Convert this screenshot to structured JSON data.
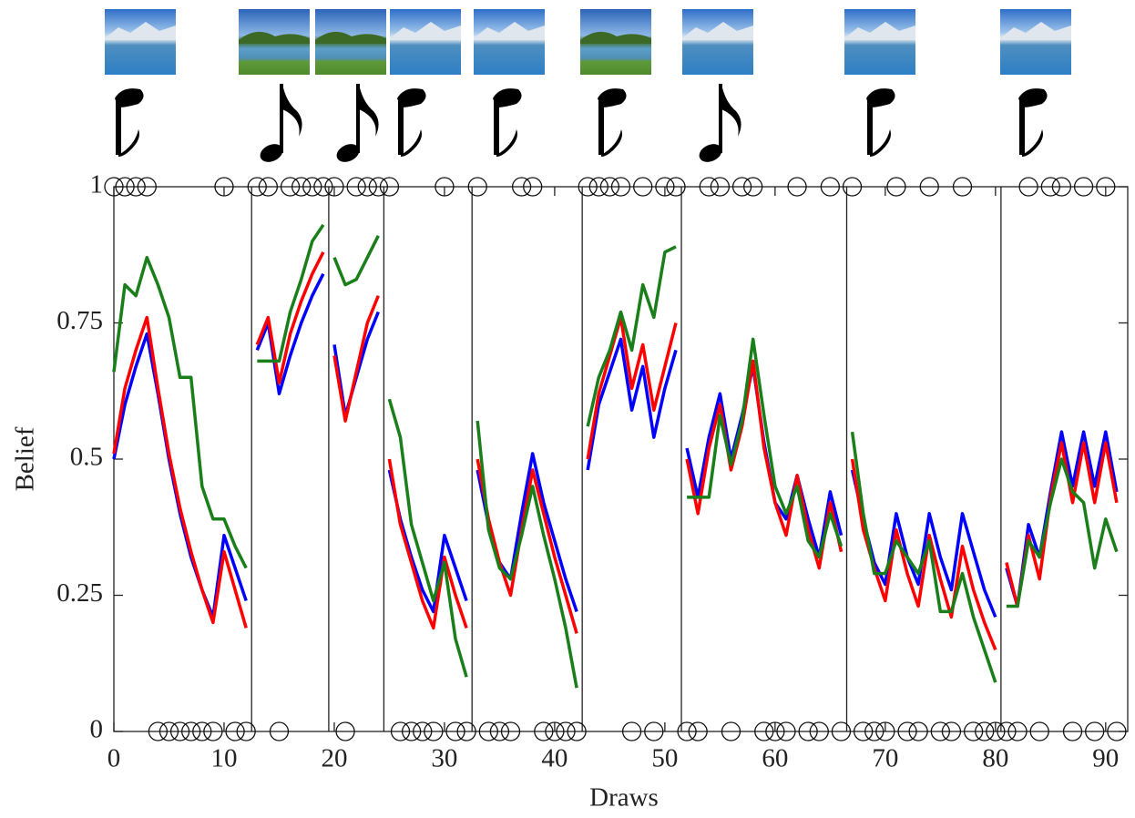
{
  "chart_data": {
    "type": "line",
    "x_label": "Draws",
    "y_label": "Belief",
    "x": [
      0,
      1,
      2,
      3,
      4,
      5,
      6,
      7,
      8,
      9,
      10,
      11,
      12,
      13,
      14,
      15,
      16,
      17,
      18,
      19,
      20,
      21,
      22,
      23,
      24,
      25,
      26,
      27,
      28,
      29,
      30,
      31,
      32,
      33,
      34,
      35,
      36,
      37,
      38,
      39,
      40,
      41,
      42,
      43,
      44,
      45,
      46,
      47,
      48,
      49,
      50,
      51,
      52,
      53,
      54,
      55,
      56,
      57,
      58,
      59,
      60,
      61,
      62,
      63,
      64,
      65,
      66,
      67,
      68,
      69,
      70,
      71,
      72,
      73,
      74,
      75,
      76,
      77,
      78,
      79,
      80,
      81,
      82,
      83,
      84,
      85,
      86,
      87,
      88,
      89,
      90,
      91
    ],
    "series": [
      {
        "color": "#0000ff",
        "values": [
          0.5,
          0.6,
          0.67,
          0.73,
          0.62,
          0.5,
          0.4,
          0.32,
          0.26,
          0.21,
          0.36,
          0.3,
          0.24,
          0.7,
          0.75,
          0.62,
          0.69,
          0.75,
          0.8,
          0.84,
          0.71,
          0.58,
          0.65,
          0.72,
          0.77,
          0.48,
          0.39,
          0.32,
          0.26,
          0.22,
          0.36,
          0.3,
          0.24,
          0.48,
          0.38,
          0.31,
          0.28,
          0.4,
          0.51,
          0.42,
          0.35,
          0.28,
          0.22,
          0.48,
          0.6,
          0.66,
          0.72,
          0.59,
          0.67,
          0.54,
          0.63,
          0.7,
          0.52,
          0.43,
          0.54,
          0.62,
          0.5,
          0.58,
          0.67,
          0.53,
          0.42,
          0.39,
          0.47,
          0.39,
          0.32,
          0.44,
          0.36,
          0.48,
          0.39,
          0.31,
          0.27,
          0.4,
          0.32,
          0.27,
          0.4,
          0.32,
          0.26,
          0.4,
          0.33,
          0.26,
          0.21,
          0.3,
          0.23,
          0.38,
          0.32,
          0.44,
          0.55,
          0.45,
          0.55,
          0.45,
          0.55,
          0.44
        ]
      },
      {
        "color": "#ff0000",
        "values": [
          0.51,
          0.63,
          0.7,
          0.76,
          0.63,
          0.51,
          0.41,
          0.33,
          0.26,
          0.2,
          0.33,
          0.26,
          0.19,
          0.71,
          0.76,
          0.64,
          0.73,
          0.79,
          0.84,
          0.88,
          0.69,
          0.57,
          0.66,
          0.75,
          0.8,
          0.5,
          0.38,
          0.31,
          0.24,
          0.19,
          0.32,
          0.25,
          0.19,
          0.5,
          0.39,
          0.31,
          0.25,
          0.37,
          0.48,
          0.4,
          0.32,
          0.25,
          0.18,
          0.5,
          0.62,
          0.69,
          0.76,
          0.63,
          0.71,
          0.59,
          0.67,
          0.75,
          0.5,
          0.4,
          0.52,
          0.6,
          0.48,
          0.56,
          0.68,
          0.52,
          0.42,
          0.36,
          0.47,
          0.37,
          0.3,
          0.42,
          0.33,
          0.5,
          0.37,
          0.3,
          0.24,
          0.37,
          0.29,
          0.23,
          0.36,
          0.28,
          0.21,
          0.34,
          0.26,
          0.2,
          0.15,
          0.31,
          0.23,
          0.36,
          0.28,
          0.43,
          0.53,
          0.42,
          0.53,
          0.42,
          0.53,
          0.42
        ]
      },
      {
        "color": "#1a7f1a",
        "values": [
          0.66,
          0.82,
          0.8,
          0.87,
          0.82,
          0.76,
          0.65,
          0.65,
          0.45,
          0.39,
          0.39,
          0.34,
          0.3,
          0.68,
          0.68,
          0.68,
          0.77,
          0.83,
          0.9,
          0.93,
          0.87,
          0.82,
          0.83,
          0.87,
          0.91,
          0.61,
          0.54,
          0.38,
          0.31,
          0.24,
          0.31,
          0.17,
          0.1,
          0.57,
          0.37,
          0.3,
          0.28,
          0.36,
          0.45,
          0.36,
          0.28,
          0.19,
          0.08,
          0.56,
          0.65,
          0.7,
          0.77,
          0.7,
          0.82,
          0.76,
          0.88,
          0.89,
          0.43,
          0.43,
          0.43,
          0.58,
          0.49,
          0.57,
          0.72,
          0.58,
          0.45,
          0.4,
          0.45,
          0.35,
          0.32,
          0.4,
          0.34,
          0.55,
          0.4,
          0.29,
          0.29,
          0.35,
          0.32,
          0.29,
          0.35,
          0.22,
          0.22,
          0.29,
          0.21,
          0.15,
          0.09,
          0.23,
          0.23,
          0.35,
          0.32,
          0.42,
          0.5,
          0.44,
          0.42,
          0.3,
          0.39,
          0.33
        ]
      }
    ],
    "observations": [
      1,
      1,
      1,
      1,
      0,
      0,
      0,
      0,
      0,
      0,
      1,
      0,
      0,
      1,
      1,
      0,
      1,
      1,
      1,
      1,
      1,
      0,
      1,
      1,
      1,
      1,
      0,
      0,
      0,
      0,
      1,
      0,
      0,
      1,
      0,
      0,
      0,
      1,
      1,
      0,
      0,
      0,
      0,
      1,
      1,
      1,
      1,
      0,
      1,
      0,
      1,
      1,
      0,
      0,
      1,
      1,
      0,
      1,
      1,
      0,
      0,
      0,
      1,
      0,
      0,
      1,
      0,
      1,
      0,
      0,
      0,
      1,
      0,
      0,
      1,
      0,
      0,
      1,
      0,
      0,
      0,
      0,
      0,
      1,
      0,
      1,
      1,
      0,
      1,
      0,
      1,
      0
    ],
    "boundaries": [
      12.5,
      19.5,
      24.5,
      32.5,
      42.5,
      51.5,
      66.5,
      80.5
    ],
    "xlim": [
      0,
      92
    ],
    "xticks": [
      0,
      10,
      20,
      30,
      40,
      50,
      60,
      70,
      80,
      90
    ],
    "ylim": [
      0,
      1
    ],
    "yticks": [
      0,
      0.25,
      0.5,
      0.75,
      1
    ]
  }
}
